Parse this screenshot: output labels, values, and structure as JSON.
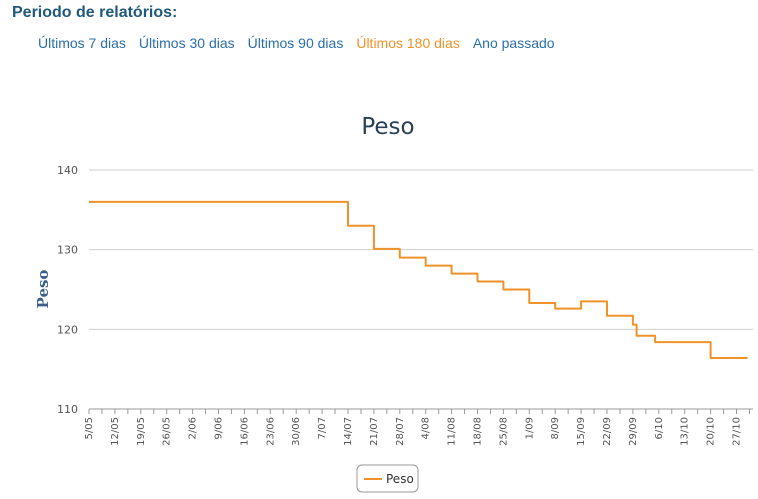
{
  "header": {
    "title": "Periodo de relatórios:",
    "links": [
      {
        "label": "Últimos 7 dias",
        "active": false
      },
      {
        "label": "Últimos 30 dias",
        "active": false
      },
      {
        "label": "Últimos 90 dias",
        "active": false
      },
      {
        "label": "Últimos 180 dias",
        "active": true
      },
      {
        "label": "Ano passado",
        "active": false
      }
    ]
  },
  "colors": {
    "series": "#f0922a",
    "link": "#2a6fa8",
    "link_active": "#f0922a",
    "grid": "#cfcfcf"
  },
  "chart_data": {
    "type": "line",
    "title": "Peso",
    "ylabel": "Peso",
    "ylim": [
      110,
      140
    ],
    "yticks": [
      110,
      120,
      130,
      140
    ],
    "xticks": [
      "5/05",
      "12/05",
      "19/05",
      "26/05",
      "2/06",
      "9/06",
      "16/06",
      "23/06",
      "30/06",
      "7/07",
      "14/07",
      "21/07",
      "28/07",
      "4/08",
      "11/08",
      "18/08",
      "25/08",
      "1/09",
      "8/09",
      "15/09",
      "22/09",
      "29/09",
      "6/10",
      "13/10",
      "20/10",
      "27/10"
    ],
    "x_start": "5/05",
    "grid": true,
    "legend": "bottom-center",
    "series": [
      {
        "name": "Peso",
        "points": [
          [
            "5/05",
            136.0
          ],
          [
            "14/07",
            136.0
          ],
          [
            "14/07",
            133.0
          ],
          [
            "21/07",
            133.0
          ],
          [
            "21/07",
            130.1
          ],
          [
            "28/07",
            130.1
          ],
          [
            "28/07",
            129.0
          ],
          [
            "4/08",
            129.0
          ],
          [
            "4/08",
            128.0
          ],
          [
            "11/08",
            128.0
          ],
          [
            "11/08",
            127.0
          ],
          [
            "18/08",
            127.0
          ],
          [
            "18/08",
            126.0
          ],
          [
            "25/08",
            126.0
          ],
          [
            "25/08",
            125.0
          ],
          [
            "1/09",
            125.0
          ],
          [
            "1/09",
            123.3
          ],
          [
            "8/09",
            123.3
          ],
          [
            "8/09",
            122.6
          ],
          [
            "15/09",
            122.6
          ],
          [
            "15/09",
            123.5
          ],
          [
            "22/09",
            123.5
          ],
          [
            "22/09",
            121.7
          ],
          [
            "29/09",
            121.7
          ],
          [
            "29/09",
            120.6
          ],
          [
            "30/09",
            120.6
          ],
          [
            "30/09",
            119.2
          ],
          [
            "5/10",
            119.2
          ],
          [
            "5/10",
            118.4
          ],
          [
            "20/10",
            118.4
          ],
          [
            "20/10",
            116.4
          ],
          [
            "30/10",
            116.4
          ]
        ]
      }
    ]
  }
}
